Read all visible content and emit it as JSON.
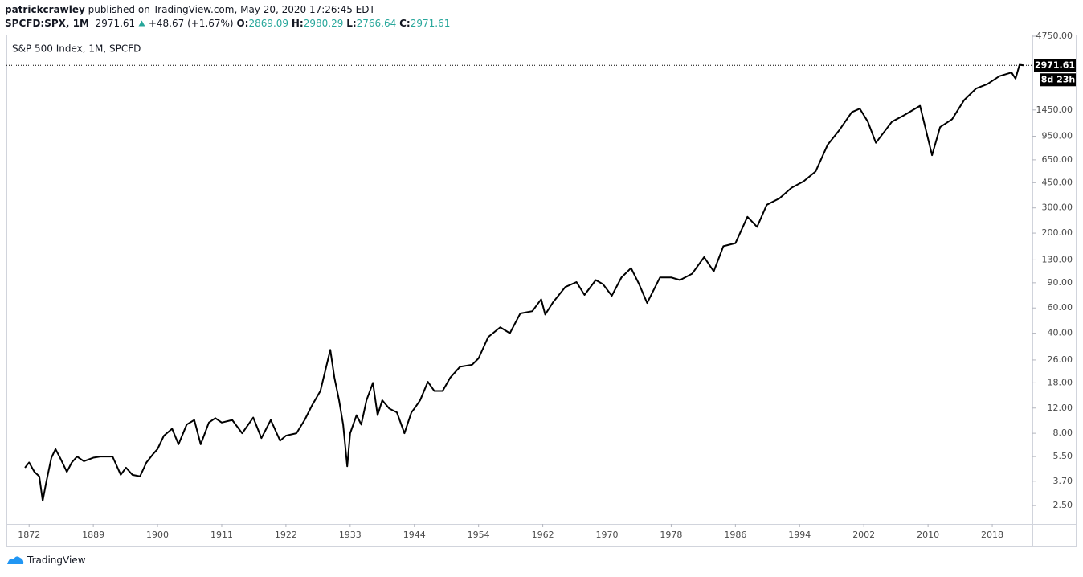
{
  "header": {
    "author": "patrickcrawley",
    "published": "published on TradingView.com, May 20, 2020 17:26:45 EDT",
    "symbol": "SPCFD:SPX, 1M",
    "change": "+48.67 (+1.67%)",
    "open": {
      "label": "O:",
      "value": "2869.09"
    },
    "high": {
      "label": "H:",
      "value": "2980.29"
    },
    "low": {
      "label": "L:",
      "value": "2766.64"
    },
    "close_label": "C:"
  },
  "footer": {
    "brand": "TradingView"
  },
  "chart_data": {
    "type": "line",
    "title": "S&P 500 Index, 1M, SPCFD",
    "log_scale": true,
    "color": "#000000",
    "countdown": "8d 23h",
    "x": [
      1870.9,
      1872,
      1873.4,
      1874.7,
      1875.6,
      1876.5,
      1877.9,
      1879,
      1880.2,
      1882,
      1883.3,
      1884.7,
      1886.5,
      1889,
      1890.2,
      1892.3,
      1893.7,
      1894.6,
      1895.7,
      1897,
      1898.1,
      1899.2,
      1900,
      1901.1,
      1902.5,
      1903.6,
      1905,
      1906.3,
      1907.4,
      1908.8,
      1909.9,
      1911,
      1912.8,
      1914.5,
      1916.4,
      1917.8,
      1919.4,
      1921,
      1922,
      1923.8,
      1925.2,
      1926.5,
      1927.9,
      1928.9,
      1929.6,
      1930.3,
      1931.1,
      1931.8,
      1932.5,
      1933,
      1934.1,
      1934.9,
      1935.8,
      1936.9,
      1937.7,
      1938.5,
      1939.7,
      1941,
      1942.3,
      1943.5,
      1944,
      1944.9,
      1946.1,
      1947.1,
      1948.4,
      1949.6,
      1951.1,
      1953,
      1954,
      1955.2,
      1956.7,
      1957.9,
      1959.2,
      1960.7,
      1961.8,
      1962.3,
      1963.3,
      1964.8,
      1966.2,
      1967.2,
      1968.6,
      1969.5,
      1970.6,
      1971.8,
      1973,
      1974,
      1975,
      1976.6,
      1978,
      1979.1,
      1980.6,
      1982.1,
      1983.3,
      1984.5,
      1986,
      1987.5,
      1988.7,
      1989.9,
      1991.5,
      1993,
      1994.5,
      1996,
      1997.5,
      1998.9,
      2000.5,
      2001.5,
      2002.5,
      2003.5,
      2005.5,
      2007,
      2009,
      2010.5,
      2011.5,
      2013,
      2014.5,
      2016,
      2017.4,
      2018.9,
      2020.4,
      2020.9,
      2021.4,
      2021.9
    ],
    "values": [
      4.6,
      5,
      4.3,
      4,
      2.7,
      3.6,
      5.4,
      6.2,
      5.4,
      4.3,
      5,
      5.5,
      5.1,
      5.4,
      5.5,
      5.5,
      4.1,
      4.6,
      4.1,
      4,
      5,
      5.7,
      6.2,
      7.7,
      8.6,
      6.7,
      9.2,
      9.9,
      6.7,
      9.5,
      10.2,
      9.5,
      9.9,
      8,
      10.3,
      7.4,
      9.9,
      7.1,
      7.7,
      8,
      9.9,
      12.6,
      15.8,
      23.3,
      30.6,
      19.6,
      13.6,
      9.2,
      4.7,
      8,
      10.7,
      9.2,
      13.6,
      18,
      10.7,
      13.6,
      11.9,
      11.2,
      8,
      11.2,
      11.9,
      13.6,
      18.3,
      15.8,
      15.8,
      19.6,
      23.3,
      24.1,
      26.7,
      37.6,
      44,
      40,
      55,
      57,
      69,
      54,
      66,
      84,
      91,
      74,
      94,
      88,
      73,
      98,
      114,
      88,
      65,
      98,
      98,
      94,
      104,
      136,
      108,
      162,
      170,
      260,
      221,
      315,
      350,
      415,
      460,
      540,
      830,
      1040,
      1400,
      1480,
      1200,
      855,
      1200,
      1330,
      1550,
      700,
      1100,
      1250,
      1700,
      2050,
      2200,
      2500,
      2650,
      2400,
      3000,
      2971.61
    ],
    "xlim": [
      1866,
      2023
    ],
    "ylim": [
      1.86,
      4874
    ],
    "xticks": [
      1872,
      1889,
      1900,
      1911,
      1922,
      1933,
      1944,
      1954,
      1962,
      1970,
      1978,
      1986,
      1994,
      2002,
      2010,
      2018
    ],
    "yticks": [
      {
        "value": 4750,
        "label": "4750.00"
      },
      {
        "value": 1450,
        "label": "1450.00"
      },
      {
        "value": 950,
        "label": "950.00"
      },
      {
        "value": 650,
        "label": "650.00"
      },
      {
        "value": 450,
        "label": "450.00"
      },
      {
        "value": 300,
        "label": "300.00"
      },
      {
        "value": 200,
        "label": "200.00"
      },
      {
        "value": 130,
        "label": "130.00"
      },
      {
        "value": 90,
        "label": "90.00"
      },
      {
        "value": 60,
        "label": "60.00"
      },
      {
        "value": 40,
        "label": "40.00"
      },
      {
        "value": 26,
        "label": "26.00"
      },
      {
        "value": 18,
        "label": "18.00"
      },
      {
        "value": 12,
        "label": "12.00"
      },
      {
        "value": 8,
        "label": "8.00"
      },
      {
        "value": 5.5,
        "label": "5.50"
      },
      {
        "value": 3.7,
        "label": "3.70"
      },
      {
        "value": 2.5,
        "label": "2.50"
      }
    ]
  }
}
